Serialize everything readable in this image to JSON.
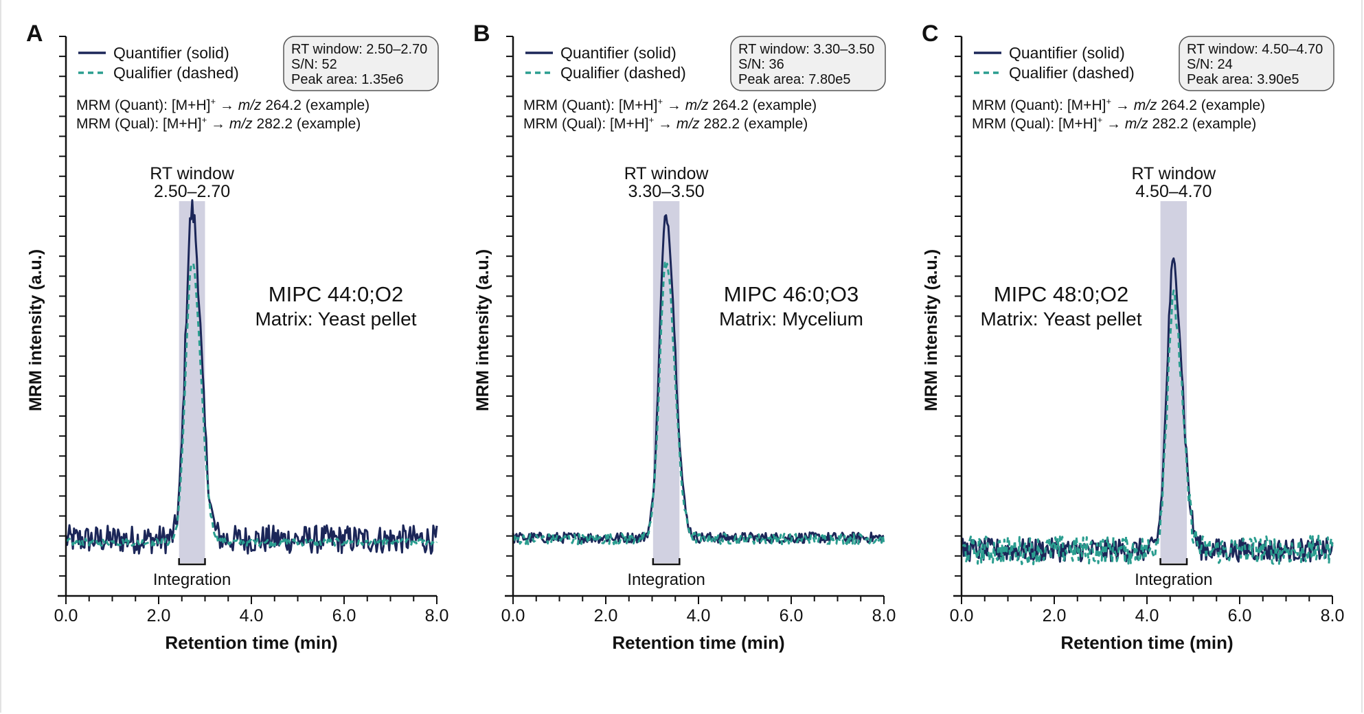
{
  "colors": {
    "quantifier": "#1b2658",
    "qualifier": "#2a9d8f",
    "rt_shade": "#c9c9dc",
    "box_fill": "#f0f0f0",
    "axis": "#111111"
  },
  "common": {
    "legend_quant": "Quantifier (solid)",
    "legend_qual": "Qualifier (dashed)",
    "mrm_quant_prefix": "MRM (Quant): [M+H]",
    "mrm_qual_prefix": "MRM (Qual): [M+H]",
    "superscript": "+",
    "arrow": " → ",
    "mz": "m/z",
    "mrm_quant_suffix": " 264.2 (example)",
    "mrm_qual_suffix": " 282.2 (example)",
    "rt_label": "RT window",
    "integration_label": "Integration",
    "ylabel": "MRM intensity (a.u.)",
    "xlabel": "Retention time (min)",
    "xticks": [
      "0.0",
      "2.0",
      "4.0",
      "6.0",
      "8.0"
    ]
  },
  "panels": [
    {
      "letter": "A",
      "box": [
        "RT window: 2.50–2.70",
        "S/N: 52",
        "Peak area: 1.35e6"
      ],
      "rt_range": "2.50–2.70",
      "compound": "MIPC 44:0;O2",
      "matrix": "Matrix: Yeast pellet"
    },
    {
      "letter": "B",
      "box": [
        "RT window: 3.30–3.50",
        "S/N: 36",
        "Peak area: 7.80e5"
      ],
      "rt_range": "3.30–3.50",
      "compound": "MIPC 46:0;O3",
      "matrix": "Matrix: Mycelium"
    },
    {
      "letter": "C",
      "box": [
        "RT window: 4.50–4.70",
        "S/N: 24",
        "Peak area: 3.90e5"
      ],
      "rt_range": "4.50–4.70",
      "compound": "MIPC 48:0;O2",
      "matrix": "Matrix: Yeast pellet"
    }
  ],
  "chart_data": [
    {
      "type": "line",
      "xlabel": "Retention time (min)",
      "ylabel": "MRM intensity (a.u.)",
      "xlim": [
        0,
        8
      ],
      "ylim": [
        0,
        100
      ],
      "grid": false,
      "legend": "top-left",
      "integration_window": [
        2.44,
        3.0
      ],
      "series": [
        {
          "name": "Quantifier (solid)",
          "baseline": 10.1,
          "peak_rt": 2.72,
          "peak_height": 68.9,
          "noise": 1.6
        },
        {
          "name": "Qualifier (dashed)",
          "baseline": 9.6,
          "peak_rt": 2.72,
          "peak_height": 59.6,
          "noise": 0.4
        }
      ]
    },
    {
      "type": "line",
      "xlabel": "Retention time (min)",
      "ylabel": "MRM intensity (a.u.)",
      "xlim": [
        0,
        8
      ],
      "ylim": [
        0,
        100
      ],
      "grid": false,
      "legend": "top-left",
      "integration_window": [
        3.02,
        3.59
      ],
      "series": [
        {
          "name": "Quantifier (solid)",
          "baseline": 10.4,
          "peak_rt": 3.3,
          "peak_height": 68.0,
          "noise": 0.6
        },
        {
          "name": "Qualifier (dashed)",
          "baseline": 10.2,
          "peak_rt": 3.3,
          "peak_height": 59.6,
          "noise": 0.6
        }
      ]
    },
    {
      "type": "line",
      "xlabel": "Retention time (min)",
      "ylabel": "MRM intensity (a.u.)",
      "xlim": [
        0,
        8
      ],
      "ylim": [
        0,
        100
      ],
      "grid": false,
      "legend": "top-left",
      "integration_window": [
        4.29,
        4.86
      ],
      "series": [
        {
          "name": "Quantifier (solid)",
          "baseline": 8.2,
          "peak_rt": 4.57,
          "peak_height": 59.1,
          "noise": 1.3
        },
        {
          "name": "Qualifier (dashed)",
          "baseline": 8.2,
          "peak_rt": 4.57,
          "peak_height": 52.4,
          "noise": 1.6
        }
      ]
    }
  ]
}
